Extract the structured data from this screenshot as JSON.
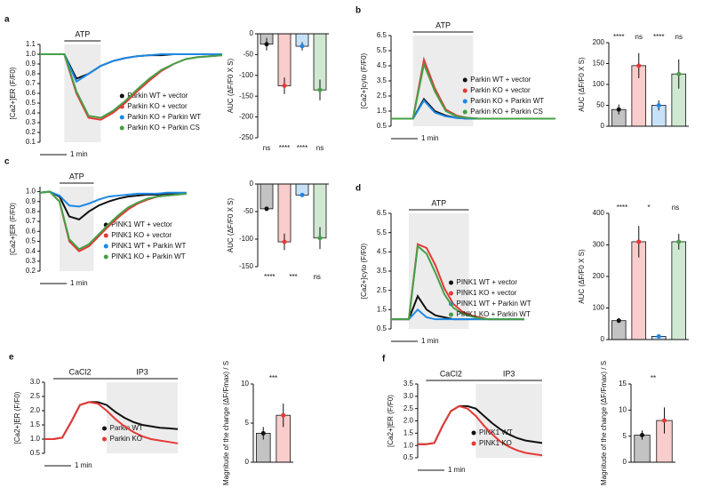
{
  "chart_data": [
    {
      "type": "line",
      "panel": "a",
      "ylabel": "[Ca2+]ER (F/F0)",
      "scale_label": "1 min",
      "x": [
        0,
        20,
        40,
        60,
        80,
        100,
        120,
        140,
        160,
        180,
        200,
        220,
        240,
        260,
        280,
        300
      ],
      "xlim": [
        0,
        300
      ],
      "ylim": [
        0.1,
        1.1
      ],
      "yticks": [
        1.1,
        {
          "value": 1,
          "label": "1.0"
        },
        0.9,
        0.8,
        0.7,
        0.6,
        0.5,
        0.4,
        0.3,
        0.2,
        0.1
      ],
      "regions": [
        {
          "label": "ATP",
          "x": [
            40,
            100
          ],
          "shaded": true
        }
      ],
      "series": [
        {
          "name": "Parkin WT + vector",
          "color": "#111111",
          "values": [
            1,
            1,
            1,
            0.75,
            0.8,
            0.88,
            0.93,
            0.96,
            0.98,
            0.99,
            0.99,
            1,
            1,
            1,
            1,
            1
          ]
        },
        {
          "name": "Parkin KO + vector",
          "color": "#e53935",
          "values": [
            1,
            1,
            1,
            0.6,
            0.35,
            0.33,
            0.4,
            0.5,
            0.62,
            0.73,
            0.83,
            0.9,
            0.95,
            0.97,
            0.98,
            0.99
          ]
        },
        {
          "name": "Parkin KO + Parkin WT",
          "color": "#1e88e5",
          "values": [
            1,
            1,
            1,
            0.72,
            0.8,
            0.88,
            0.93,
            0.96,
            0.98,
            0.99,
            1,
            1,
            1,
            1,
            1,
            1
          ]
        },
        {
          "name": "Parkin KO + Parkin CS",
          "color": "#43a047",
          "values": [
            1,
            1,
            1,
            0.62,
            0.37,
            0.35,
            0.42,
            0.52,
            0.64,
            0.75,
            0.84,
            0.9,
            0.95,
            0.97,
            0.98,
            0.99
          ]
        }
      ]
    },
    {
      "type": "bar",
      "ylabel": "AUC (ΔF/F0 X S)",
      "ylim": [
        -250,
        0
      ],
      "yticks": [
        0,
        -50,
        -100,
        -150,
        -200,
        -250
      ],
      "values": [
        -25,
        -125,
        -30,
        -135
      ],
      "errors": [
        15,
        20,
        10,
        25
      ],
      "colors": [
        "#111111",
        "#e53935",
        "#1e88e5",
        "#43a047"
      ],
      "annotations": [
        "ns",
        "****",
        "****",
        "ns"
      ],
      "annotation_position": "below"
    },
    {
      "type": "line",
      "panel": "b",
      "ylabel": "[Ca2+]cyto (F/F0)",
      "scale_label": "1 min",
      "x": [
        0,
        20,
        40,
        60,
        80,
        100,
        120,
        140,
        160,
        180,
        200,
        220,
        240,
        260,
        280,
        300
      ],
      "xlim": [
        0,
        300
      ],
      "ylim": [
        0.5,
        6.5
      ],
      "yticks": [
        6.5,
        5.5,
        4.5,
        3.5,
        2.5,
        1.5,
        0.5
      ],
      "regions": [
        {
          "label": "ATP",
          "x": [
            40,
            150
          ],
          "shaded": true
        }
      ],
      "series": [
        {
          "name": "Parkin WT + vector",
          "color": "#111111",
          "values": [
            1,
            1,
            1,
            2.3,
            1.5,
            1.2,
            1.05,
            1,
            1,
            1,
            1,
            1,
            1,
            1,
            1,
            1
          ]
        },
        {
          "name": "Parkin KO + vector",
          "color": "#e53935",
          "values": [
            1,
            1,
            1,
            4.9,
            3,
            1.6,
            1.2,
            1.05,
            1,
            1,
            1,
            1,
            1,
            1,
            1,
            1
          ]
        },
        {
          "name": "Parkin KO + Parkin WT",
          "color": "#1e88e5",
          "values": [
            1,
            1,
            1,
            2.2,
            1.4,
            1.15,
            1.05,
            1,
            1,
            1,
            1,
            1,
            1,
            1,
            1,
            1
          ]
        },
        {
          "name": "Parkin KO + Parkin CS",
          "color": "#43a047",
          "values": [
            1,
            1,
            1,
            4.6,
            2.8,
            1.5,
            1.15,
            1.05,
            1,
            1,
            1,
            1,
            1,
            1,
            1,
            1
          ]
        }
      ]
    },
    {
      "type": "bar",
      "ylabel": "AUC (ΔF/F0 X S)",
      "ylim": [
        0,
        200
      ],
      "yticks": [
        0,
        50,
        100,
        150,
        200
      ],
      "values": [
        40,
        145,
        50,
        125
      ],
      "errors": [
        12,
        30,
        12,
        35
      ],
      "colors": [
        "#111111",
        "#e53935",
        "#1e88e5",
        "#43a047"
      ],
      "annotations": [
        "****",
        "ns",
        "****",
        "ns"
      ],
      "annotation_position": "above"
    },
    {
      "type": "line",
      "panel": "c",
      "ylabel": "[Ca2+]ER (F/F0)",
      "scale_label": "1 min",
      "x": [
        0,
        20,
        40,
        60,
        80,
        100,
        120,
        140,
        160,
        180,
        200,
        220,
        240,
        260,
        280,
        300
      ],
      "xlim": [
        0,
        300
      ],
      "ylim": [
        0.2,
        1.05
      ],
      "yticks": [
        {
          "value": 1,
          "label": "1.0"
        },
        0.9,
        0.8,
        0.7,
        0.6,
        0.5,
        0.4,
        0.3,
        0.2
      ],
      "regions": [
        {
          "label": "ATP",
          "x": [
            40,
            110
          ],
          "shaded": true
        }
      ],
      "series": [
        {
          "name": "PINK1 WT + vector",
          "color": "#111111",
          "values": [
            0.99,
            1,
            0.95,
            0.75,
            0.72,
            0.8,
            0.86,
            0.9,
            0.93,
            0.95,
            0.96,
            0.97,
            0.97,
            0.98,
            0.98,
            0.98
          ]
        },
        {
          "name": "PINK1 KO + vector",
          "color": "#e53935",
          "values": [
            0.99,
            1,
            0.9,
            0.5,
            0.4,
            0.45,
            0.55,
            0.65,
            0.74,
            0.82,
            0.88,
            0.92,
            0.95,
            0.96,
            0.97,
            0.98
          ]
        },
        {
          "name": "PINK1 WT + Parkin WT",
          "color": "#1e88e5",
          "values": [
            0.99,
            1,
            0.96,
            0.86,
            0.85,
            0.88,
            0.92,
            0.95,
            0.96,
            0.97,
            0.98,
            0.98,
            0.98,
            0.99,
            0.99,
            0.99
          ]
        },
        {
          "name": "PINK1 KO + Parkin WT",
          "color": "#43a047",
          "values": [
            0.99,
            1,
            0.9,
            0.52,
            0.42,
            0.47,
            0.57,
            0.67,
            0.76,
            0.84,
            0.89,
            0.93,
            0.95,
            0.96,
            0.97,
            0.98
          ]
        }
      ]
    },
    {
      "type": "bar",
      "ylabel": "AUC (ΔF/F0 X S)",
      "ylim": [
        -150,
        0
      ],
      "yticks": [
        0,
        -50,
        -100,
        -150
      ],
      "values": [
        -45,
        -105,
        -20,
        -98
      ],
      "errors": [
        4,
        15,
        3,
        20
      ],
      "colors": [
        "#111111",
        "#e53935",
        "#1e88e5",
        "#43a047"
      ],
      "annotations": [
        "****",
        "***",
        "ns"
      ],
      "annotation_position": "below"
    },
    {
      "type": "line",
      "panel": "d",
      "ylabel": "[Ca2+]cyto (F/F0)",
      "scale_label": "1 min",
      "x": [
        0,
        20,
        40,
        60,
        80,
        100,
        120,
        140,
        160,
        180,
        200,
        220,
        240,
        260,
        280,
        300
      ],
      "xlim": [
        0,
        300
      ],
      "ylim": [
        0.5,
        6.5
      ],
      "yticks": [
        6.5,
        5.5,
        4.5,
        3.5,
        2.5,
        1.5,
        0.5
      ],
      "regions": [
        {
          "label": "ATP",
          "x": [
            40,
            175
          ],
          "shaded": true
        }
      ],
      "series": [
        {
          "name": "PINK1 WT + vector",
          "color": "#111111",
          "values": [
            1,
            1,
            1,
            2.2,
            1.5,
            1.2,
            1.1,
            1,
            1,
            1,
            1,
            1,
            1,
            1,
            1,
            1
          ]
        },
        {
          "name": "PINK1 KO + vector",
          "color": "#e53935",
          "values": [
            1,
            1,
            1,
            4.9,
            4.7,
            3.8,
            2.6,
            1.8,
            1.4,
            1.2,
            1.1,
            1,
            1,
            1,
            1,
            1
          ]
        },
        {
          "name": "PINK1 WT + Parkin WT",
          "color": "#1e88e5",
          "values": [
            1,
            1,
            1,
            1.5,
            1.1,
            1,
            1,
            1,
            1,
            1,
            1,
            1,
            1,
            1,
            1,
            1
          ]
        },
        {
          "name": "PINK1 KO + Parkin WT",
          "color": "#43a047",
          "values": [
            1,
            1,
            1,
            4.8,
            4.4,
            3.4,
            2.3,
            1.6,
            1.3,
            1.15,
            1.05,
            1,
            1,
            1,
            1,
            1
          ]
        }
      ]
    },
    {
      "type": "bar",
      "ylabel": "AUC (ΔF/F0 X S)",
      "ylim": [
        0,
        400
      ],
      "yticks": [
        0,
        100,
        200,
        300,
        400
      ],
      "values": [
        60,
        310,
        10,
        310
      ],
      "errors": [
        8,
        50,
        4,
        25
      ],
      "colors": [
        "#111111",
        "#e53935",
        "#1e88e5",
        "#43a047"
      ],
      "annotations": [
        "****",
        "*",
        "ns"
      ],
      "annotation_position": "above"
    },
    {
      "type": "line",
      "panel": "e",
      "ylabel": "[Ca2+]ER (F/F0)",
      "scale_label": "1 min",
      "x": [
        0,
        20,
        40,
        60,
        80,
        100,
        120,
        140,
        160,
        180,
        200,
        220,
        240,
        260,
        280,
        300
      ],
      "xlim": [
        0,
        300
      ],
      "ylim": [
        0.5,
        3.0
      ],
      "yticks": [
        0.5,
        {
          "value": 1,
          "label": "1.0"
        },
        1.5,
        {
          "value": 2,
          "label": "2.0"
        },
        2.5,
        {
          "value": 3,
          "label": "3.0"
        }
      ],
      "regions": [
        {
          "label": "CaCl2",
          "x": [
            20,
            140
          ],
          "shaded": false
        },
        {
          "label": "IP3",
          "x": [
            140,
            300
          ],
          "shaded": true
        }
      ],
      "series": [
        {
          "name": "Parkin WT",
          "color": "#111111",
          "values": [
            1,
            1,
            1.05,
            1.6,
            2.2,
            2.3,
            2.3,
            2.2,
            1.95,
            1.75,
            1.6,
            1.5,
            1.45,
            1.4,
            1.38,
            1.35
          ]
        },
        {
          "name": "Parkin KO",
          "color": "#e53935",
          "values": [
            1,
            1,
            1.05,
            1.6,
            2.2,
            2.3,
            2.25,
            2.0,
            1.7,
            1.45,
            1.25,
            1.1,
            1.0,
            0.95,
            0.9,
            0.85
          ]
        }
      ]
    },
    {
      "type": "bar",
      "ylabel": "Magnitude of the change (ΔF/Fmax) / S",
      "ylim": [
        0,
        10
      ],
      "yticks": [
        0,
        5,
        10
      ],
      "values": [
        3.7,
        6.0
      ],
      "errors": [
        0.8,
        1.5
      ],
      "colors": [
        "#111111",
        "#e53935"
      ],
      "annotations": [
        "***"
      ],
      "annotation_position": "above"
    },
    {
      "type": "line",
      "panel": "f",
      "ylabel": "[Ca2+]ER (F/F0)",
      "scale_label": "1 min",
      "x": [
        0,
        20,
        40,
        60,
        80,
        100,
        120,
        140,
        160,
        180,
        200,
        220,
        240,
        260,
        280,
        300
      ],
      "xlim": [
        0,
        300
      ],
      "ylim": [
        0.5,
        3.5
      ],
      "yticks": [
        0.5,
        {
          "value": 1,
          "label": "1.0"
        },
        1.5,
        {
          "value": 2,
          "label": "2.0"
        },
        2.5,
        {
          "value": 3,
          "label": "3.0"
        },
        3.5
      ],
      "regions": [
        {
          "label": "CaCl2",
          "x": [
            20,
            140
          ],
          "shaded": false
        },
        {
          "label": "IP3",
          "x": [
            140,
            300
          ],
          "shaded": true
        }
      ],
      "series": [
        {
          "name": "PINK1 WT",
          "color": "#111111",
          "values": [
            1.05,
            1.05,
            1.1,
            1.8,
            2.4,
            2.6,
            2.6,
            2.5,
            2.2,
            1.9,
            1.65,
            1.45,
            1.3,
            1.2,
            1.15,
            1.1
          ]
        },
        {
          "name": "PINK1 KO",
          "color": "#e53935",
          "values": [
            1.05,
            1.05,
            1.1,
            1.8,
            2.4,
            2.6,
            2.5,
            2.2,
            1.8,
            1.45,
            1.15,
            0.95,
            0.8,
            0.7,
            0.65,
            0.6
          ]
        }
      ]
    },
    {
      "type": "bar",
      "ylabel": "Magnitude of the change (ΔF/Fmax) / S",
      "ylim": [
        0,
        15
      ],
      "yticks": [
        0,
        5,
        10,
        15
      ],
      "values": [
        5.2,
        8.0
      ],
      "errors": [
        0.9,
        2.5
      ],
      "colors": [
        "#111111",
        "#e53935"
      ],
      "annotations": [
        "**"
      ],
      "annotation_position": "above"
    }
  ]
}
